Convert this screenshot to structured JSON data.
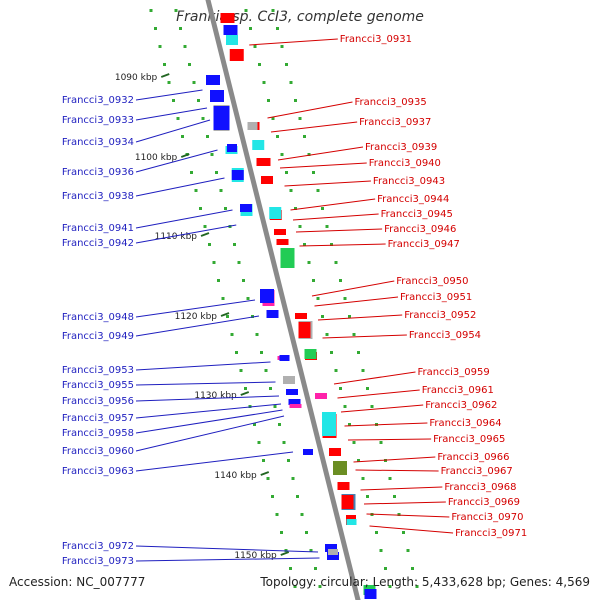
{
  "title": "Frankia sp. CcI3, complete genome",
  "footer": {
    "accession": "Accession: NC_007777",
    "topology": "Topology: circular; Length: 5,433,628 bp; Genes: 4,569"
  },
  "colors": {
    "left_labels": "#1f1fbf",
    "right_labels": "#d40000",
    "backbone": "#8a8a8a",
    "tick_dots": "#33aa33",
    "gene_red": "#ff0000",
    "gene_blue": "#1010ff",
    "gene_cyan": "#22e6e6",
    "gene_green": "#22cc55",
    "gene_grey": "#b0b0b0",
    "gene_magenta": "#ff22aa",
    "gene_olive": "#6b8e23",
    "gene_steel": "#4682b4"
  },
  "kbp_labels": [
    "1090 kbp",
    "1100 kbp",
    "1110 kbp",
    "1120 kbp",
    "1130 kbp",
    "1140 kbp",
    "1150 kbp"
  ],
  "left_genes": [
    "Francci3_0932",
    "Francci3_0933",
    "Francci3_0934",
    "Francci3_0936",
    "Francci3_0938",
    "Francci3_0941",
    "Francci3_0942",
    "Francci3_0948",
    "Francci3_0949",
    "Francci3_0953",
    "Francci3_0955",
    "Francci3_0956",
    "Francci3_0957",
    "Francci3_0958",
    "Francci3_0960",
    "Francci3_0963",
    "Francci3_0972",
    "Francci3_0973"
  ],
  "right_genes": [
    "Francci3_0931",
    "Francci3_0935",
    "Francci3_0937",
    "Francci3_0939",
    "Francci3_0940",
    "Francci3_0943",
    "Francci3_0944",
    "Francci3_0945",
    "Francci3_0946",
    "Francci3_0947",
    "Francci3_0950",
    "Francci3_0951",
    "Francci3_0952",
    "Francci3_0954",
    "Francci3_0959",
    "Francci3_0961",
    "Francci3_0962",
    "Francci3_0964",
    "Francci3_0965",
    "Francci3_0966",
    "Francci3_0967",
    "Francci3_0968",
    "Francci3_0969",
    "Francci3_0970",
    "Francci3_0971"
  ]
}
